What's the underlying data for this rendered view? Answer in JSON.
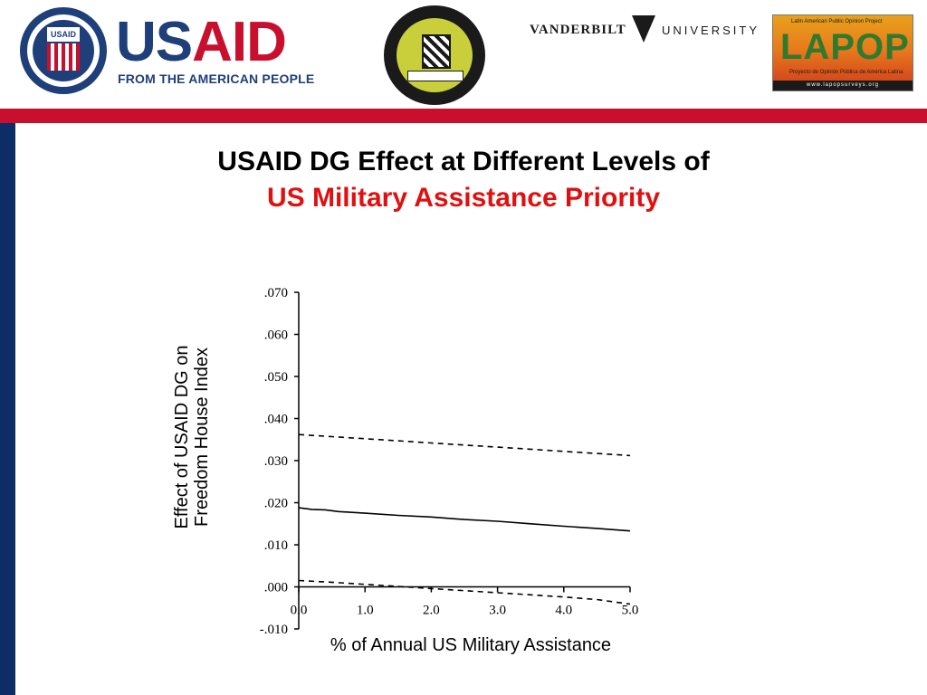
{
  "header": {
    "seal_icon": "usaid-seal-icon",
    "seal_text": "USAID",
    "logo_us": "US",
    "logo_aid": "AID",
    "tagline": "FROM THE AMERICAN PEOPLE",
    "pitt_seal_icon": "university-of-pittsburgh-seal-icon",
    "vanderbilt": "VANDERBILT",
    "vanderbilt_university": "UNIVERSITY",
    "lapop_small": "Latin American Public Opinion Project",
    "lapop_big": "LAPOP",
    "lapop_sub": "Proyecto de Opinión Pública de América Latina",
    "lapop_url": "www.lapopsurveys.org"
  },
  "colors": {
    "brand_red": "#c8102e",
    "navy": "#0d2d66",
    "title_red": "#e01010"
  },
  "slide": {
    "title_line1": "USAID DG Effect at Different Levels of",
    "title_line2": "US Military Assistance Priority"
  },
  "chart_data": {
    "type": "line",
    "xlabel": "% of Annual US Military Assistance",
    "ylabel_line1": "Effect of USAID DG on",
    "ylabel_line2": "Freedom House Index",
    "xlim": [
      0,
      5
    ],
    "ylim": [
      -0.01,
      0.07
    ],
    "x_ticks": [
      0,
      1,
      2,
      3,
      4,
      5
    ],
    "x_tick_labels": [
      "0.0",
      "1.0",
      "2.0",
      "3.0",
      "4.0",
      "5.0"
    ],
    "y_ticks": [
      -0.01,
      0.0,
      0.01,
      0.02,
      0.03,
      0.04,
      0.05,
      0.06,
      0.07
    ],
    "y_tick_labels": [
      "-.010",
      ".000",
      ".010",
      ".020",
      ".030",
      ".040",
      ".050",
      ".060",
      ".070"
    ],
    "grid": false,
    "series": [
      {
        "style": "dashed",
        "x": [
          0.0,
          0.5,
          1.0,
          1.5,
          2.0,
          2.5,
          3.0,
          3.5,
          4.0,
          4.5,
          5.0
        ],
        "y": [
          0.0362,
          0.0357,
          0.0352,
          0.0347,
          0.0342,
          0.0337,
          0.0332,
          0.0327,
          0.0322,
          0.0317,
          0.0312
        ]
      },
      {
        "style": "solid",
        "x": [
          0.0,
          0.2,
          0.4,
          0.6,
          0.8,
          1.0,
          1.5,
          2.0,
          2.5,
          3.0,
          3.5,
          4.0,
          4.5,
          5.0
        ],
        "y": [
          0.0188,
          0.0184,
          0.0183,
          0.0179,
          0.0177,
          0.0175,
          0.017,
          0.0166,
          0.016,
          0.0156,
          0.015,
          0.0144,
          0.0139,
          0.0133
        ]
      },
      {
        "style": "dashed",
        "x": [
          0.0,
          0.5,
          1.0,
          1.5,
          2.0,
          2.5,
          3.0,
          3.5,
          4.0,
          4.5,
          5.0
        ],
        "y": [
          0.0015,
          0.0011,
          0.0006,
          0.0001,
          -0.0004,
          -0.0009,
          -0.0014,
          -0.0019,
          -0.0024,
          -0.003,
          -0.0041
        ]
      }
    ]
  }
}
